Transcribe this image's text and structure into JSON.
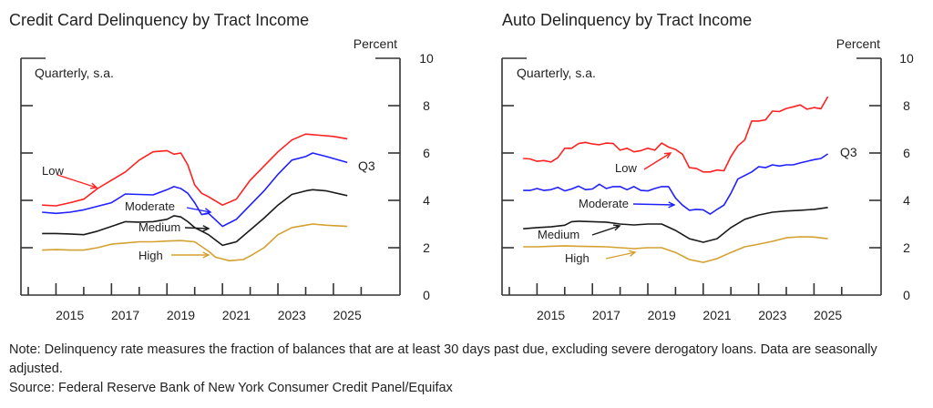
{
  "colors": {
    "Low": "#ff2020",
    "Moderate": "#2020ff",
    "Medium": "#1a1a1a",
    "High": "#d4a030"
  },
  "footer": {
    "note": "Note: Delinquency rate measures the fraction of balances that are at least 30 days past due, excluding severe derogatory loans. Data are seasonally adjusted.",
    "source": "Source: Federal Reserve Bank of New York Consumer Credit Panel/Equifax"
  },
  "chart_data": [
    {
      "type": "line",
      "title": "Credit Card Delinquency by Tract Income",
      "ylabel": "Percent",
      "subtitle": "Quarterly, s.a.",
      "end_label": "Q3",
      "xlim": [
        2014,
        2027
      ],
      "ylim": [
        0,
        10
      ],
      "yticks": [
        0,
        2,
        4,
        6,
        8,
        10
      ],
      "xtick_labels": [
        "2015",
        "2017",
        "2019",
        "2021",
        "2023",
        "2025"
      ],
      "grid": false,
      "legend": "inline-annotations",
      "series": [
        {
          "name": "Low",
          "x": [
            2014.5,
            2015.0,
            2015.5,
            2016.0,
            2016.5,
            2017.0,
            2017.5,
            2018.0,
            2018.5,
            2019.0,
            2019.25,
            2019.5,
            2019.75,
            2020.0,
            2020.25,
            2020.5,
            2021.0,
            2021.5,
            2022.0,
            2022.5,
            2023.0,
            2023.5,
            2024.0,
            2024.5,
            2025.0,
            2025.5
          ],
          "values": [
            3.8,
            3.77,
            3.9,
            4.05,
            4.5,
            4.85,
            5.2,
            5.7,
            6.05,
            6.1,
            5.95,
            6.0,
            5.5,
            4.65,
            4.3,
            4.15,
            3.8,
            4.05,
            4.85,
            5.45,
            6.05,
            6.55,
            6.8,
            6.75,
            6.7,
            6.6
          ]
        },
        {
          "name": "Moderate",
          "x": [
            2014.5,
            2015.0,
            2015.5,
            2016.0,
            2016.5,
            2017.0,
            2017.5,
            2018.0,
            2018.5,
            2019.0,
            2019.25,
            2019.5,
            2019.75,
            2020.0,
            2020.25,
            2020.5,
            2021.0,
            2021.5,
            2022.0,
            2022.5,
            2023.0,
            2023.5,
            2024.0,
            2024.25,
            2024.75,
            2025.5
          ],
          "values": [
            3.5,
            3.45,
            3.5,
            3.6,
            3.75,
            3.9,
            4.27,
            4.25,
            4.23,
            4.45,
            4.58,
            4.5,
            4.3,
            3.9,
            3.4,
            3.45,
            2.9,
            3.2,
            3.8,
            4.4,
            5.1,
            5.7,
            5.85,
            6.0,
            5.85,
            5.6
          ]
        },
        {
          "name": "Medium",
          "x": [
            2014.5,
            2015.0,
            2015.5,
            2016.0,
            2016.5,
            2017.0,
            2017.5,
            2018.0,
            2018.5,
            2019.0,
            2019.25,
            2019.5,
            2019.75,
            2020.0,
            2020.5,
            2021.0,
            2021.5,
            2022.0,
            2022.5,
            2023.0,
            2023.5,
            2024.0,
            2024.25,
            2024.75,
            2025.5
          ],
          "values": [
            2.6,
            2.6,
            2.58,
            2.55,
            2.7,
            2.9,
            3.1,
            3.08,
            3.1,
            3.2,
            3.35,
            3.3,
            3.1,
            2.85,
            2.55,
            2.1,
            2.25,
            2.75,
            3.25,
            3.8,
            4.25,
            4.4,
            4.45,
            4.4,
            4.2
          ]
        },
        {
          "name": "High",
          "x": [
            2014.5,
            2015.0,
            2015.5,
            2016.0,
            2016.5,
            2017.0,
            2017.5,
            2018.0,
            2018.5,
            2019.0,
            2019.5,
            2020.0,
            2020.5,
            2020.75,
            2021.25,
            2021.75,
            2022.0,
            2022.5,
            2023.0,
            2023.5,
            2024.0,
            2024.25,
            2024.75,
            2025.5
          ],
          "values": [
            1.9,
            1.92,
            1.9,
            1.9,
            2.0,
            2.15,
            2.2,
            2.25,
            2.25,
            2.28,
            2.3,
            2.25,
            1.85,
            1.6,
            1.45,
            1.5,
            1.65,
            2.0,
            2.55,
            2.85,
            2.95,
            3.0,
            2.95,
            2.9
          ]
        }
      ],
      "annotations": [
        {
          "text": "Low",
          "series": "Low"
        },
        {
          "text": "Moderate",
          "series": "Moderate"
        },
        {
          "text": "Medium",
          "series": "Medium"
        },
        {
          "text": "High",
          "series": "High"
        }
      ]
    },
    {
      "type": "line",
      "title": "Auto Delinquency by Tract Income",
      "ylabel": "Percent",
      "subtitle": "Quarterly, s.a.",
      "end_label": "Q3",
      "xlim": [
        2014,
        2027
      ],
      "ylim": [
        0,
        10
      ],
      "yticks": [
        0,
        2,
        4,
        6,
        8,
        10
      ],
      "xtick_labels": [
        "2015",
        "2017",
        "2019",
        "2021",
        "2023",
        "2025"
      ],
      "grid": false,
      "legend": "inline-annotations",
      "series": [
        {
          "name": "Low",
          "x": [
            2014.5,
            2014.75,
            2015.0,
            2015.25,
            2015.5,
            2015.75,
            2016.0,
            2016.25,
            2016.5,
            2016.75,
            2017.0,
            2017.25,
            2017.5,
            2017.75,
            2018.0,
            2018.25,
            2018.5,
            2018.75,
            2019.0,
            2019.25,
            2019.5,
            2019.75,
            2020.0,
            2020.25,
            2020.5,
            2020.75,
            2021.0,
            2021.25,
            2021.5,
            2021.75,
            2022.0,
            2022.25,
            2022.5,
            2022.75,
            2023.0,
            2023.25,
            2023.5,
            2023.75,
            2024.0,
            2024.25,
            2024.5,
            2024.75,
            2025.0,
            2025.25,
            2025.5
          ],
          "values": [
            5.77,
            5.75,
            5.65,
            5.68,
            5.62,
            5.8,
            6.2,
            6.2,
            6.4,
            6.45,
            6.38,
            6.35,
            6.42,
            6.4,
            6.12,
            6.2,
            6.05,
            6.1,
            6.2,
            6.12,
            6.42,
            6.25,
            6.15,
            5.95,
            5.38,
            5.35,
            5.2,
            5.2,
            5.28,
            5.25,
            5.85,
            6.3,
            6.55,
            7.35,
            7.35,
            7.4,
            7.77,
            7.75,
            7.88,
            7.95,
            8.03,
            7.85,
            7.92,
            7.87,
            8.38
          ]
        },
        {
          "name": "Moderate",
          "x": [
            2014.5,
            2014.75,
            2015.0,
            2015.25,
            2015.5,
            2015.75,
            2016.0,
            2016.25,
            2016.5,
            2016.75,
            2017.0,
            2017.25,
            2017.5,
            2017.75,
            2018.0,
            2018.25,
            2018.5,
            2018.75,
            2019.0,
            2019.25,
            2019.5,
            2019.75,
            2020.0,
            2020.25,
            2020.5,
            2020.75,
            2021.0,
            2021.25,
            2021.5,
            2021.75,
            2022.0,
            2022.25,
            2022.5,
            2022.75,
            2023.0,
            2023.25,
            2023.5,
            2023.75,
            2024.0,
            2024.25,
            2024.5,
            2024.75,
            2025.0,
            2025.25,
            2025.5
          ],
          "values": [
            4.42,
            4.42,
            4.5,
            4.42,
            4.45,
            4.55,
            4.4,
            4.48,
            4.6,
            4.45,
            4.48,
            4.68,
            4.5,
            4.58,
            4.58,
            4.45,
            4.58,
            4.42,
            4.4,
            4.5,
            4.58,
            4.58,
            4.1,
            3.8,
            3.58,
            3.62,
            3.6,
            3.42,
            3.62,
            3.8,
            4.3,
            4.9,
            5.05,
            5.2,
            5.42,
            5.38,
            5.5,
            5.45,
            5.5,
            5.5,
            5.58,
            5.65,
            5.72,
            5.77,
            5.96
          ]
        },
        {
          "name": "Medium",
          "x": [
            2014.5,
            2015.0,
            2015.5,
            2016.0,
            2016.25,
            2016.5,
            2017.0,
            2017.5,
            2018.0,
            2018.5,
            2019.0,
            2019.5,
            2020.0,
            2020.5,
            2021.0,
            2021.5,
            2022.0,
            2022.5,
            2023.0,
            2023.5,
            2024.0,
            2024.5,
            2025.0,
            2025.5
          ],
          "values": [
            2.8,
            2.85,
            2.88,
            2.95,
            3.1,
            3.12,
            3.1,
            3.08,
            3.0,
            2.96,
            3.0,
            3.0,
            2.73,
            2.38,
            2.23,
            2.38,
            2.85,
            3.2,
            3.38,
            3.5,
            3.55,
            3.58,
            3.62,
            3.7
          ]
        },
        {
          "name": "High",
          "x": [
            2014.5,
            2015.0,
            2015.5,
            2016.0,
            2016.5,
            2017.0,
            2017.5,
            2018.0,
            2018.5,
            2019.0,
            2019.5,
            2020.0,
            2020.5,
            2021.0,
            2021.5,
            2022.0,
            2022.5,
            2023.0,
            2023.5,
            2024.0,
            2024.5,
            2025.0,
            2025.5
          ],
          "values": [
            2.04,
            2.04,
            2.06,
            2.08,
            2.06,
            2.05,
            2.04,
            2.0,
            1.96,
            2.0,
            2.0,
            1.8,
            1.5,
            1.38,
            1.54,
            1.8,
            2.04,
            2.15,
            2.27,
            2.42,
            2.46,
            2.45,
            2.38
          ]
        }
      ],
      "annotations": [
        {
          "text": "Low",
          "series": "Low"
        },
        {
          "text": "Moderate",
          "series": "Moderate"
        },
        {
          "text": "Medium",
          "series": "Medium"
        },
        {
          "text": "High",
          "series": "High"
        }
      ]
    }
  ]
}
